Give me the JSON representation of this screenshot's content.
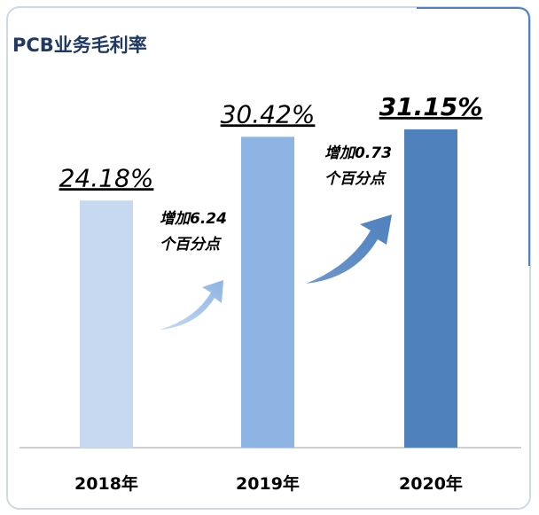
{
  "chart_data": {
    "type": "bar",
    "title": "PCB业务毛利率",
    "categories": [
      "2018年",
      "2019年",
      "2020年"
    ],
    "values": [
      24.18,
      30.42,
      31.15
    ],
    "value_labels": [
      "24.18%",
      "30.42%",
      "31.15%"
    ],
    "colors": [
      "#c6d9f1",
      "#8eb4e3",
      "#4f81bd"
    ],
    "ylim": [
      0,
      36
    ],
    "annotations": [
      {
        "lines": [
          "增加6.24",
          "个百分点"
        ]
      },
      {
        "lines": [
          "增加0.73",
          "个百分点"
        ]
      }
    ]
  }
}
